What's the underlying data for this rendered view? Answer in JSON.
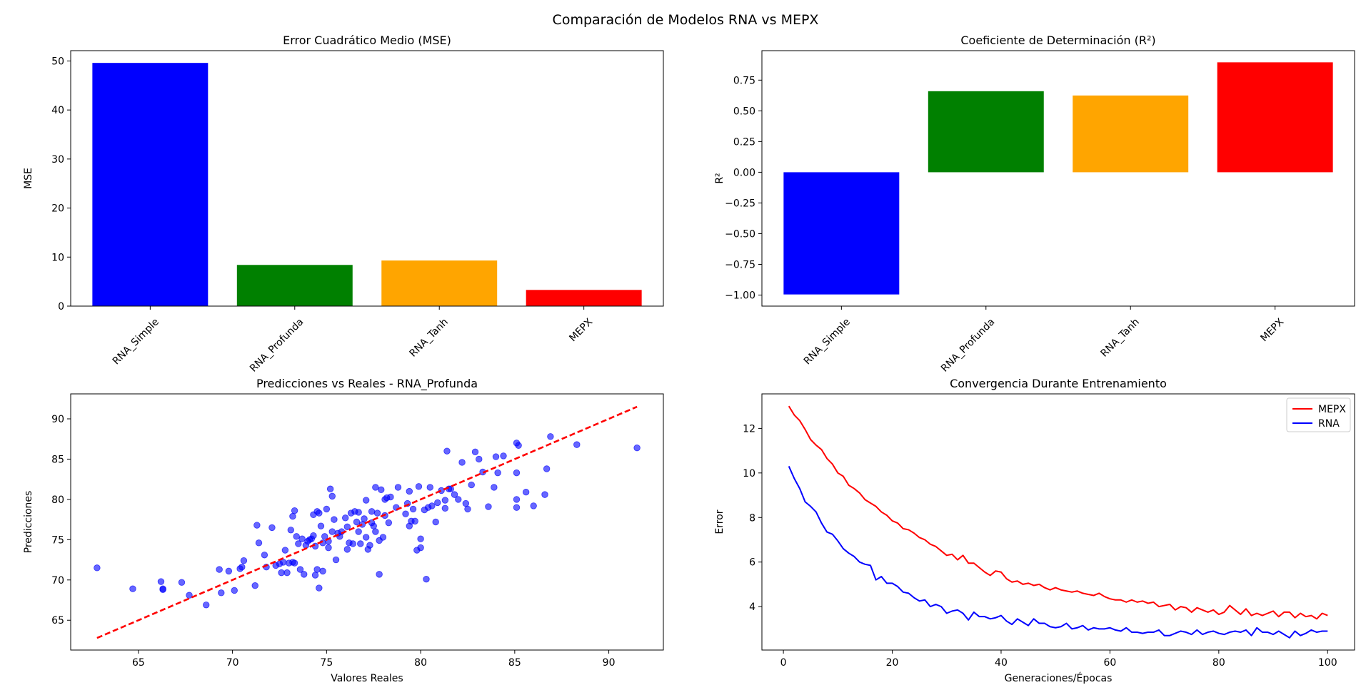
{
  "figure_title": "Comparación de Modelos RNA vs MEPX",
  "chart_data": [
    {
      "type": "bar",
      "title": "Error Cuadrático Medio (MSE)",
      "xlabel": "",
      "ylabel": "MSE",
      "categories": [
        "RNA_Simple",
        "RNA_Profunda",
        "RNA_Tanh",
        "MEPX"
      ],
      "values": [
        49.6,
        8.4,
        9.3,
        3.3
      ],
      "colors": [
        "#0000ff",
        "#008000",
        "#ffa500",
        "#ff0000"
      ],
      "ylim": [
        0,
        52.1
      ],
      "yticks": [
        0,
        10,
        20,
        30,
        40,
        50
      ],
      "grid": false
    },
    {
      "type": "bar",
      "title": "Coeficiente de Determinación (R²)",
      "xlabel": "",
      "ylabel": "R²",
      "categories": [
        "RNA_Simple",
        "RNA_Profunda",
        "RNA_Tanh",
        "MEPX"
      ],
      "values": [
        -0.995,
        0.66,
        0.625,
        0.895
      ],
      "colors": [
        "#0000ff",
        "#008000",
        "#ffa500",
        "#ff0000"
      ],
      "ylim": [
        -1.09,
        0.99
      ],
      "yticks": [
        -1.0,
        -0.75,
        -0.5,
        -0.25,
        0.0,
        0.25,
        0.5,
        0.75
      ],
      "grid": false
    },
    {
      "type": "scatter",
      "title": "Predicciones vs Reales - RNA_Profunda",
      "xlabel": "Valores Reales",
      "ylabel": "Predicciones",
      "xlim": [
        61.4,
        92.9
      ],
      "ylim": [
        61.3,
        93.1
      ],
      "xticks": [
        65,
        70,
        75,
        80,
        85,
        90
      ],
      "yticks": [
        65,
        70,
        75,
        80,
        85,
        90
      ],
      "point_color": "#0000ff",
      "reference_line": {
        "x": [
          62.8,
          91.5
        ],
        "y": [
          62.8,
          91.5
        ],
        "color": "#ff0000",
        "style": "dashed"
      },
      "points": [
        [
          62.8,
          71.5
        ],
        [
          64.7,
          68.9
        ],
        [
          66.2,
          69.8
        ],
        [
          66.3,
          68.9
        ],
        [
          66.3,
          68.8
        ],
        [
          67.3,
          69.7
        ],
        [
          67.7,
          68.1
        ],
        [
          68.6,
          66.9
        ],
        [
          69.3,
          71.3
        ],
        [
          69.4,
          68.4
        ],
        [
          69.8,
          71.1
        ],
        [
          70.1,
          68.7
        ],
        [
          70.4,
          71.4
        ],
        [
          70.5,
          71.6
        ],
        [
          70.6,
          72.4
        ],
        [
          71.2,
          69.3
        ],
        [
          71.3,
          76.8
        ],
        [
          71.4,
          74.6
        ],
        [
          71.7,
          73.1
        ],
        [
          71.8,
          71.6
        ],
        [
          72.1,
          76.5
        ],
        [
          72.3,
          71.8
        ],
        [
          72.5,
          72.0
        ],
        [
          72.6,
          70.9
        ],
        [
          72.7,
          72.2
        ],
        [
          72.8,
          73.7
        ],
        [
          72.9,
          70.9
        ],
        [
          73.0,
          72.1
        ],
        [
          73.1,
          76.2
        ],
        [
          73.2,
          72.2
        ],
        [
          73.2,
          77.9
        ],
        [
          73.3,
          72.1
        ],
        [
          73.3,
          78.6
        ],
        [
          73.4,
          75.4
        ],
        [
          73.5,
          74.5
        ],
        [
          73.6,
          71.3
        ],
        [
          73.7,
          75.1
        ],
        [
          73.8,
          70.7
        ],
        [
          73.9,
          74.3
        ],
        [
          74.0,
          74.8
        ],
        [
          74.1,
          75.0
        ],
        [
          74.2,
          75.1
        ],
        [
          74.3,
          78.1
        ],
        [
          74.3,
          75.5
        ],
        [
          74.4,
          70.6
        ],
        [
          74.4,
          74.2
        ],
        [
          74.5,
          71.3
        ],
        [
          74.5,
          78.5
        ],
        [
          74.6,
          78.3
        ],
        [
          74.6,
          69.0
        ],
        [
          74.7,
          76.7
        ],
        [
          74.8,
          71.1
        ],
        [
          74.8,
          74.6
        ],
        [
          74.9,
          75.4
        ],
        [
          75.0,
          78.8
        ],
        [
          75.1,
          74.8
        ],
        [
          75.1,
          74.0
        ],
        [
          75.2,
          81.3
        ],
        [
          75.3,
          80.4
        ],
        [
          75.3,
          76.0
        ],
        [
          75.4,
          77.5
        ],
        [
          75.5,
          72.5
        ],
        [
          75.6,
          75.8
        ],
        [
          75.7,
          75.4
        ],
        [
          75.8,
          76.0
        ],
        [
          76.0,
          77.7
        ],
        [
          76.1,
          76.6
        ],
        [
          76.1,
          73.8
        ],
        [
          76.2,
          74.6
        ],
        [
          76.3,
          78.3
        ],
        [
          76.4,
          74.5
        ],
        [
          76.5,
          78.5
        ],
        [
          76.6,
          77.2
        ],
        [
          76.7,
          76.0
        ],
        [
          76.7,
          78.4
        ],
        [
          76.8,
          74.5
        ],
        [
          76.9,
          76.9
        ],
        [
          77.0,
          77.6
        ],
        [
          77.1,
          75.3
        ],
        [
          77.1,
          79.9
        ],
        [
          77.2,
          73.8
        ],
        [
          77.3,
          74.3
        ],
        [
          77.4,
          77.1
        ],
        [
          77.4,
          78.5
        ],
        [
          77.5,
          76.7
        ],
        [
          77.6,
          76.0
        ],
        [
          77.6,
          81.5
        ],
        [
          77.7,
          78.3
        ],
        [
          77.8,
          70.7
        ],
        [
          77.8,
          74.9
        ],
        [
          77.9,
          81.2
        ],
        [
          78.0,
          75.3
        ],
        [
          78.1,
          78.0
        ],
        [
          78.1,
          80.0
        ],
        [
          78.2,
          80.2
        ],
        [
          78.3,
          77.1
        ],
        [
          78.4,
          80.3
        ],
        [
          78.7,
          79.0
        ],
        [
          78.8,
          81.5
        ],
        [
          79.2,
          78.2
        ],
        [
          79.3,
          79.5
        ],
        [
          79.4,
          76.7
        ],
        [
          79.4,
          81.0
        ],
        [
          79.5,
          77.3
        ],
        [
          79.6,
          78.8
        ],
        [
          79.7,
          77.3
        ],
        [
          79.8,
          73.7
        ],
        [
          79.9,
          81.6
        ],
        [
          80.0,
          74.0
        ],
        [
          80.0,
          75.1
        ],
        [
          80.2,
          78.7
        ],
        [
          80.3,
          70.1
        ],
        [
          80.4,
          79.0
        ],
        [
          80.5,
          81.5
        ],
        [
          80.6,
          79.2
        ],
        [
          80.8,
          77.2
        ],
        [
          80.9,
          79.6
        ],
        [
          81.1,
          81.1
        ],
        [
          81.3,
          78.9
        ],
        [
          81.3,
          79.9
        ],
        [
          81.4,
          86.0
        ],
        [
          81.5,
          81.3
        ],
        [
          81.6,
          81.3
        ],
        [
          81.8,
          80.6
        ],
        [
          82.0,
          80.0
        ],
        [
          82.2,
          84.6
        ],
        [
          82.4,
          79.5
        ],
        [
          82.5,
          78.8
        ],
        [
          82.7,
          81.8
        ],
        [
          82.9,
          85.9
        ],
        [
          83.1,
          85.0
        ],
        [
          83.3,
          83.4
        ],
        [
          83.6,
          79.1
        ],
        [
          83.9,
          81.5
        ],
        [
          84.0,
          85.3
        ],
        [
          84.1,
          83.3
        ],
        [
          84.4,
          85.4
        ],
        [
          85.1,
          87.0
        ],
        [
          85.1,
          83.3
        ],
        [
          85.1,
          79.0
        ],
        [
          85.1,
          80.0
        ],
        [
          85.2,
          86.7
        ],
        [
          85.6,
          80.9
        ],
        [
          86.0,
          79.2
        ],
        [
          86.6,
          80.6
        ],
        [
          86.7,
          83.8
        ],
        [
          86.9,
          87.8
        ],
        [
          88.3,
          86.8
        ],
        [
          91.5,
          86.4
        ]
      ],
      "grid": false
    },
    {
      "type": "line",
      "title": "Convergencia Durante Entrenamiento",
      "xlabel": "Generaciones/Épocas",
      "ylabel": "Error",
      "xlim": [
        -3.95,
        104.95
      ],
      "ylim": [
        2.05,
        13.55
      ],
      "xticks": [
        0,
        20,
        40,
        60,
        80,
        100
      ],
      "yticks": [
        4,
        6,
        8,
        10,
        12
      ],
      "legend_position": "top-right",
      "series": [
        {
          "name": "MEPX",
          "color": "#ff0000",
          "x": [
            1,
            2,
            3,
            4,
            5,
            6,
            7,
            8,
            9,
            10,
            11,
            12,
            13,
            14,
            15,
            16,
            17,
            18,
            19,
            20,
            21,
            22,
            23,
            24,
            25,
            26,
            27,
            28,
            29,
            30,
            31,
            32,
            33,
            34,
            35,
            36,
            37,
            38,
            39,
            40,
            41,
            42,
            43,
            44,
            45,
            46,
            47,
            48,
            49,
            50,
            51,
            52,
            53,
            54,
            55,
            56,
            57,
            58,
            59,
            60,
            61,
            62,
            63,
            64,
            65,
            66,
            67,
            68,
            69,
            70,
            71,
            72,
            73,
            74,
            75,
            76,
            77,
            78,
            79,
            80,
            81,
            82,
            83,
            84,
            85,
            86,
            87,
            88,
            89,
            90,
            91,
            92,
            93,
            94,
            95,
            96,
            97,
            98,
            99,
            100
          ],
          "values": [
            13.0,
            12.6,
            12.35,
            11.95,
            11.5,
            11.25,
            11.05,
            10.65,
            10.4,
            10.0,
            9.85,
            9.45,
            9.3,
            9.1,
            8.8,
            8.65,
            8.5,
            8.25,
            8.1,
            7.85,
            7.75,
            7.5,
            7.45,
            7.3,
            7.1,
            7.0,
            6.8,
            6.7,
            6.5,
            6.3,
            6.35,
            6.1,
            6.3,
            5.95,
            5.95,
            5.75,
            5.55,
            5.4,
            5.6,
            5.55,
            5.25,
            5.1,
            5.15,
            5.0,
            5.05,
            4.95,
            5.0,
            4.85,
            4.75,
            4.85,
            4.75,
            4.7,
            4.65,
            4.7,
            4.6,
            4.55,
            4.5,
            4.6,
            4.45,
            4.35,
            4.3,
            4.3,
            4.2,
            4.3,
            4.2,
            4.25,
            4.15,
            4.2,
            4.0,
            4.05,
            4.1,
            3.85,
            4.0,
            3.95,
            3.75,
            3.95,
            3.85,
            3.75,
            3.85,
            3.65,
            3.75,
            4.05,
            3.85,
            3.65,
            3.9,
            3.6,
            3.7,
            3.6,
            3.7,
            3.8,
            3.55,
            3.75,
            3.75,
            3.5,
            3.7,
            3.55,
            3.6,
            3.45,
            3.7,
            3.6
          ]
        },
        {
          "name": "RNA",
          "color": "#0000ff",
          "x": [
            1,
            2,
            3,
            4,
            5,
            6,
            7,
            8,
            9,
            10,
            11,
            12,
            13,
            14,
            15,
            16,
            17,
            18,
            19,
            20,
            21,
            22,
            23,
            24,
            25,
            26,
            27,
            28,
            29,
            30,
            31,
            32,
            33,
            34,
            35,
            36,
            37,
            38,
            39,
            40,
            41,
            42,
            43,
            44,
            45,
            46,
            47,
            48,
            49,
            50,
            51,
            52,
            53,
            54,
            55,
            56,
            57,
            58,
            59,
            60,
            61,
            62,
            63,
            64,
            65,
            66,
            67,
            68,
            69,
            70,
            71,
            72,
            73,
            74,
            75,
            76,
            77,
            78,
            79,
            80,
            81,
            82,
            83,
            84,
            85,
            86,
            87,
            88,
            89,
            90,
            91,
            92,
            93,
            94,
            95,
            96,
            97,
            98,
            99,
            100
          ],
          "values": [
            10.3,
            9.75,
            9.3,
            8.7,
            8.5,
            8.25,
            7.75,
            7.35,
            7.25,
            6.95,
            6.6,
            6.4,
            6.25,
            6.0,
            5.9,
            5.85,
            5.2,
            5.35,
            5.05,
            5.05,
            4.9,
            4.65,
            4.6,
            4.4,
            4.25,
            4.3,
            4.0,
            4.1,
            4.0,
            3.7,
            3.8,
            3.85,
            3.7,
            3.4,
            3.75,
            3.55,
            3.55,
            3.45,
            3.5,
            3.6,
            3.35,
            3.2,
            3.45,
            3.3,
            3.15,
            3.45,
            3.25,
            3.25,
            3.1,
            3.05,
            3.1,
            3.25,
            3.0,
            3.05,
            3.15,
            2.95,
            3.05,
            3.0,
            3.0,
            3.05,
            2.95,
            2.9,
            3.05,
            2.85,
            2.85,
            2.8,
            2.85,
            2.85,
            2.95,
            2.7,
            2.7,
            2.8,
            2.9,
            2.85,
            2.75,
            2.95,
            2.75,
            2.85,
            2.9,
            2.8,
            2.75,
            2.85,
            2.9,
            2.85,
            2.95,
            2.7,
            3.05,
            2.85,
            2.85,
            2.75,
            2.9,
            2.75,
            2.6,
            2.9,
            2.7,
            2.8,
            2.95,
            2.85,
            2.9,
            2.9
          ]
        }
      ],
      "grid": false
    }
  ]
}
